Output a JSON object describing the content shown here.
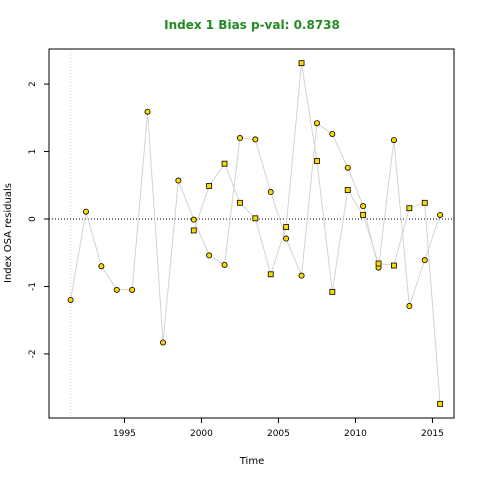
{
  "chart_data": {
    "type": "scatter",
    "title": "Index 1 Bias p-val: 0.8738",
    "title_color": "#228b22",
    "xlabel": "Time",
    "ylabel": "Index OSA residuals",
    "xlim": [
      1990.1,
      2016.4
    ],
    "ylim": [
      -2.95,
      2.52
    ],
    "x_ticks": [
      1995,
      2000,
      2005,
      2010,
      2015
    ],
    "y_ticks": [
      -2,
      -1,
      0,
      1,
      2
    ],
    "zero_line": 0,
    "reference_vline": 1991.5,
    "line_color": "#d3d3d3",
    "marker_fill": "#ffd700",
    "marker_edge": "#000000",
    "series": [
      {
        "marker": "circle",
        "x": [
          1991.5,
          1992.5,
          1993.5,
          1994.5,
          1995.5,
          1996.5,
          1997.5,
          1998.5,
          1999.5,
          2000.5,
          2001.5,
          2002.5,
          2003.5,
          2004.5,
          2005.5,
          2006.5,
          2007.5,
          2008.5,
          2009.5,
          2010.5,
          2011.5,
          2012.5,
          2013.5,
          2014.5,
          2015.5
        ],
        "y": [
          -1.2,
          0.11,
          -0.7,
          -1.05,
          -1.05,
          1.59,
          -1.83,
          0.57,
          -0.01,
          -0.54,
          -0.68,
          1.2,
          1.18,
          0.4,
          -0.29,
          -0.84,
          1.42,
          1.26,
          0.76,
          0.19,
          -0.72,
          1.17,
          -1.29,
          -0.61,
          0.06
        ]
      },
      {
        "marker": "square",
        "x": [
          1999.5,
          2000.5,
          2001.5,
          2002.5,
          2003.5,
          2004.5,
          2005.5,
          2006.5,
          2007.5,
          2008.5,
          2009.5,
          2010.5,
          2011.5,
          2012.5,
          2013.5,
          2014.5,
          2015.5
        ],
        "y": [
          -0.17,
          0.49,
          0.82,
          0.24,
          0.01,
          -0.82,
          -0.12,
          2.31,
          0.86,
          -1.08,
          0.43,
          0.06,
          -0.66,
          -0.69,
          0.16,
          0.24,
          -2.74
        ]
      }
    ]
  }
}
